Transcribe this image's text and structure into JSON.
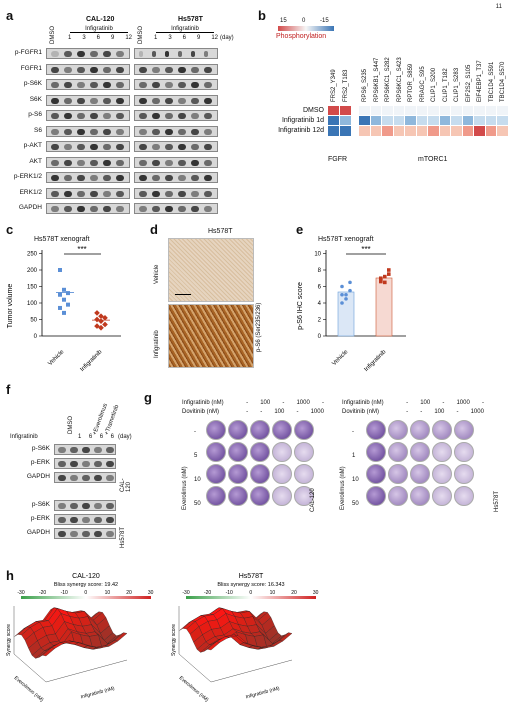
{
  "page_number": "11",
  "panel_a": {
    "label": "a",
    "cell_lines": [
      "CAL-120",
      "Hs578T"
    ],
    "dmso": "DMSO",
    "drug": "Infigratinib",
    "days": [
      "1",
      "3",
      "6",
      "9",
      "12"
    ],
    "day_unit": "(day)",
    "rows": [
      "p-FGFR1",
      "FGFR1",
      "p-S6K",
      "S6K",
      "p-S6",
      "S6",
      "p-AKT",
      "AKT",
      "p-ERK1/2",
      "ERK1/2",
      "GAPDH"
    ]
  },
  "panel_b": {
    "label": "b",
    "legend_min": "15",
    "legend_mid": "0",
    "legend_max": "-15",
    "legend_title": "Phosphorylation",
    "columns": [
      "FRS2_Y349",
      "FRS2_T183",
      "RPS6_S235",
      "RPS6KB1_S447",
      "RPS6KC1_S282",
      "RPS6KC1_S423",
      "RPTOR_S859",
      "RRAGC_S95",
      "CLIP1_S200",
      "CLIP1_T182",
      "CLIP1_S283",
      "EIF2S2_S105",
      "EIF4EBP1_T37",
      "TBC1D4_S591",
      "TBC1D4_S570"
    ],
    "rows": [
      "DMSO",
      "Infigratinib 1d",
      "Infigratinib 12d"
    ],
    "group_fgfr": "FGFR",
    "group_mtorc1": "mTORC1",
    "colors": [
      [
        "#d24a4a",
        "#d24a4a",
        "#f0f4f8",
        "#f0f4f8",
        "#f0f4f8",
        "#f0f4f8",
        "#f0f4f8",
        "#f0f4f8",
        "#f0f4f8",
        "#f0f4f8",
        "#f0f4f8",
        "#f0f4f8",
        "#f0f4f8",
        "#f0f4f8",
        "#f0f4f8"
      ],
      [
        "#3a75b5",
        "#8fb8dc",
        "#3a75b5",
        "#8fb8dc",
        "#c6dcee",
        "#c6dcee",
        "#8fb8dc",
        "#c6dcee",
        "#c6dcee",
        "#8fb8dc",
        "#c6dcee",
        "#8fb8dc",
        "#c6dcee",
        "#c6dcee",
        "#c6dcee"
      ],
      [
        "#3a75b5",
        "#3a75b5",
        "#f6c6b4",
        "#f6c6b4",
        "#f09a8a",
        "#f6c6b4",
        "#f6c6b4",
        "#f6c6b4",
        "#f09a8a",
        "#f6c6b4",
        "#f6c6b4",
        "#f09a8a",
        "#d24a4a",
        "#f09a8a",
        "#f6c6b4"
      ]
    ]
  },
  "panel_c": {
    "label": "c",
    "title": "Hs578T xenograft",
    "ylabel": "Tumor volume",
    "yticks": [
      "0",
      "50",
      "100",
      "150",
      "200",
      "250"
    ],
    "groups": [
      "Vehicle",
      "Infigratinib"
    ],
    "significance": "***"
  },
  "panel_d": {
    "label": "d",
    "title": "Hs578T",
    "rows": [
      "Vehicle",
      "Infigratinib"
    ],
    "stain": "p-S6 (Ser235/236)"
  },
  "panel_e": {
    "label": "e",
    "title": "Hs578T xenograft",
    "ylabel": "p-S6 IHC score",
    "yticks": [
      "0",
      "2",
      "4",
      "6",
      "8",
      "10"
    ],
    "groups": [
      "Vehicle",
      "Infigratinib"
    ],
    "significance": "***"
  },
  "panel_f": {
    "label": "f",
    "col_headers": [
      "DMSO",
      "+Everolimus",
      "+Trametinib"
    ],
    "drug": "Infigratinib",
    "days": [
      "1",
      "6",
      "6",
      "6"
    ],
    "day_unit": "(day)",
    "rows": [
      "p-S6K",
      "p-ERK",
      "GAPDH"
    ],
    "cell_lines": [
      "CAL-120",
      "Hs578T"
    ]
  },
  "panel_g": {
    "label": "g",
    "row_drug1": "Infigratinib (nM)",
    "row_drug2": "Dovitinib (nM)",
    "drug1_vals": [
      "-",
      "100",
      "-",
      "1000",
      "-"
    ],
    "drug2_vals": [
      "-",
      "-",
      "100",
      "-",
      "1000"
    ],
    "ever_label": "Everolimus (nM)",
    "ever_vals": [
      "-",
      "5",
      "10",
      "50"
    ],
    "ever_vals_right": [
      "-",
      "1",
      "10",
      "50"
    ],
    "cell_lines": [
      "CAL-120",
      "Hs578T"
    ]
  },
  "panel_h": {
    "label": "h",
    "plots": [
      {
        "title": "CAL-120",
        "score_text": "Bliss synergy score: 19.42",
        "scale": [
          "-30",
          "-20",
          "-10",
          "0",
          "10",
          "20",
          "30"
        ],
        "zlabel": "Synergy score",
        "xlabel": "Infigratinib (nM)",
        "ylabel": "Everolimus (nM)"
      },
      {
        "title": "Hs578T",
        "score_text": "Bliss synergy score: 16.343",
        "scale": [
          "-30",
          "-20",
          "-10",
          "0",
          "10",
          "20",
          "30"
        ],
        "zlabel": "Synergy score",
        "xlabel": "Infigratinib (nM)",
        "ylabel": "Everolimus (nM)"
      }
    ]
  }
}
